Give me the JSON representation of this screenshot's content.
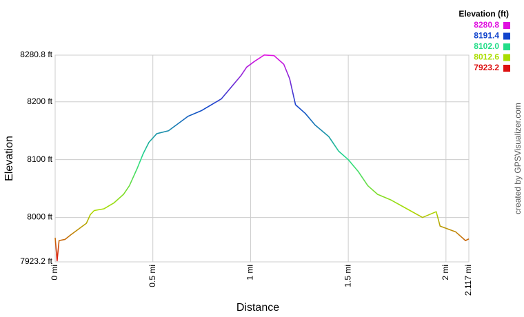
{
  "chart_data": {
    "type": "line",
    "x_label": "Distance",
    "y_label": "Elevation",
    "legend_title": "Elevation (ft)",
    "credit": "created by GPSVisualizer.com",
    "color_scale": [
      {
        "value": 8280.8,
        "label": "8280.8",
        "color": "#e010e0"
      },
      {
        "value": 8191.4,
        "label": "8191.4",
        "color": "#1144cc"
      },
      {
        "value": 8102.0,
        "label": "8102.0",
        "color": "#22dd88"
      },
      {
        "value": 8012.6,
        "label": "8012.6",
        "color": "#aadd00"
      },
      {
        "value": 7923.2,
        "label": "7923.2",
        "color": "#dd1111"
      }
    ],
    "xlim": [
      0,
      2.117
    ],
    "ylim": [
      7923.2,
      8280.8
    ],
    "xticks": [
      {
        "value": 0,
        "label": "0 mi"
      },
      {
        "value": 0.5,
        "label": "0.5 mi"
      },
      {
        "value": 1,
        "label": "1 mi"
      },
      {
        "value": 1.5,
        "label": "1.5 mi"
      },
      {
        "value": 2,
        "label": "2 mi"
      },
      {
        "value": 2.117,
        "label": "2.117 mi"
      }
    ],
    "yticks": [
      {
        "value": 7923.2,
        "label": "7923.2 ft"
      },
      {
        "value": 8000,
        "label": "8000 ft"
      },
      {
        "value": 8100,
        "label": "8100 ft"
      },
      {
        "value": 8200,
        "label": "8200 ft"
      },
      {
        "value": 8280.8,
        "label": "8280.8 ft"
      }
    ],
    "grid": true,
    "x": [
      0,
      0.01,
      0.02,
      0.05,
      0.08,
      0.12,
      0.16,
      0.18,
      0.2,
      0.25,
      0.3,
      0.35,
      0.38,
      0.4,
      0.42,
      0.45,
      0.48,
      0.52,
      0.58,
      0.62,
      0.68,
      0.75,
      0.8,
      0.85,
      0.9,
      0.95,
      0.98,
      1.02,
      1.07,
      1.12,
      1.17,
      1.2,
      1.23,
      1.28,
      1.33,
      1.4,
      1.45,
      1.5,
      1.55,
      1.6,
      1.65,
      1.72,
      1.8,
      1.88,
      1.95,
      1.97,
      2.05,
      2.1,
      2.117
    ],
    "values": [
      7965,
      7925,
      7960,
      7962,
      7970,
      7980,
      7990,
      8005,
      8012,
      8015,
      8025,
      8040,
      8055,
      8070,
      8085,
      8110,
      8130,
      8145,
      8150,
      8160,
      8175,
      8185,
      8195,
      8205,
      8225,
      8245,
      8260,
      8270,
      8281,
      8280,
      8265,
      8240,
      8195,
      8180,
      8160,
      8140,
      8115,
      8100,
      8080,
      8055,
      8040,
      8030,
      8015,
      8000,
      8010,
      7985,
      7975,
      7960,
      7963
    ]
  }
}
